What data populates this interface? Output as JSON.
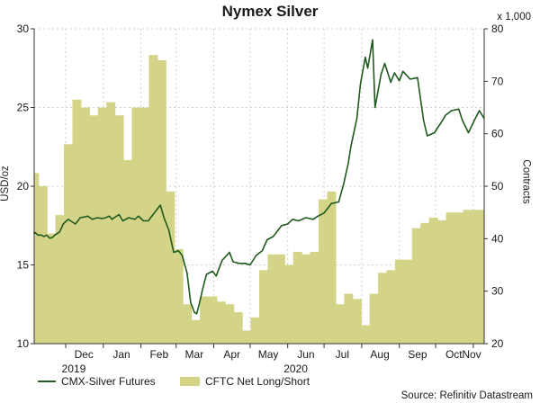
{
  "title": "Nymex Silver",
  "source": "Source: Refinitiv Datastream",
  "colors": {
    "line": "#1f5a1f",
    "bar": "#d4d488",
    "grid": "#cfcfcf",
    "plot_bg": "#ffffff"
  },
  "chart_data": {
    "type": "bar+line",
    "title": "Nymex Silver",
    "x_ticks": [
      "Dec",
      "Jan",
      "Feb",
      "Mar",
      "Apr",
      "May",
      "Jun",
      "Jul",
      "Aug",
      "Sep",
      "Oct",
      "Nov"
    ],
    "year_labels": [
      "2019",
      "2020"
    ],
    "y_left": {
      "label": "USD/oz",
      "range": [
        10,
        30
      ],
      "ticks": [
        "10",
        "15",
        "20",
        "25",
        "30"
      ]
    },
    "y_right": {
      "label": "Contracts",
      "scale_note": "x 1,000",
      "range": [
        20,
        80
      ],
      "ticks": [
        "20",
        "30",
        "40",
        "50",
        "60",
        "70",
        "80"
      ]
    },
    "legend": {
      "position": "bottom-left",
      "line_label": "CMX-Silver Futures",
      "bar_label": "CFTC Net Long/Short"
    },
    "date_range": [
      "2019-11-05",
      "2020-11-10"
    ],
    "series": [
      {
        "name": "CFTC Net Long/Short",
        "axis": "right",
        "kind": "bar",
        "dates": [
          "2019-11-05",
          "2019-11-12",
          "2019-11-19",
          "2019-11-26",
          "2019-12-03",
          "2019-12-10",
          "2019-12-17",
          "2019-12-24",
          "2019-12-31",
          "2020-01-07",
          "2020-01-14",
          "2020-01-21",
          "2020-01-28",
          "2020-02-04",
          "2020-02-11",
          "2020-02-18",
          "2020-02-25",
          "2020-03-03",
          "2020-03-10",
          "2020-03-17",
          "2020-03-24",
          "2020-03-31",
          "2020-04-07",
          "2020-04-14",
          "2020-04-21",
          "2020-04-28",
          "2020-05-05",
          "2020-05-12",
          "2020-05-19",
          "2020-05-26",
          "2020-06-02",
          "2020-06-09",
          "2020-06-16",
          "2020-06-23",
          "2020-06-30",
          "2020-07-07",
          "2020-07-14",
          "2020-07-21",
          "2020-07-28",
          "2020-08-04",
          "2020-08-11",
          "2020-08-18",
          "2020-08-25",
          "2020-09-01",
          "2020-09-08",
          "2020-09-15",
          "2020-09-22",
          "2020-09-29",
          "2020-10-06",
          "2020-10-13",
          "2020-10-20",
          "2020-10-27",
          "2020-11-03",
          "2020-11-10"
        ],
        "values": [
          52.5,
          50.0,
          41.0,
          44.5,
          58.0,
          66.5,
          65.0,
          63.5,
          65.0,
          66.0,
          63.5,
          55.0,
          65.0,
          65.0,
          75.0,
          74.0,
          49.0,
          38.0,
          27.5,
          24.5,
          29.0,
          29.0,
          28.0,
          27.5,
          26.0,
          22.5,
          25.0,
          34.0,
          37.0,
          37.0,
          35.0,
          37.5,
          37.0,
          37.5,
          47.5,
          49.0,
          27.5,
          29.5,
          28.5,
          23.5,
          29.5,
          33.5,
          34.0,
          36.0,
          36.0,
          42.0,
          43.0,
          44.0,
          43.5,
          45.0,
          45.0,
          45.5,
          45.5,
          45.5
        ]
      },
      {
        "name": "CMX-Silver Futures",
        "axis": "left",
        "kind": "line",
        "dates": [
          "2019-11-01",
          "2019-11-04",
          "2019-11-06",
          "2019-11-08",
          "2019-11-11",
          "2019-11-13",
          "2019-11-15",
          "2019-11-18",
          "2019-11-20",
          "2019-11-22",
          "2019-11-26",
          "2019-11-29",
          "2019-12-03",
          "2019-12-05",
          "2019-12-09",
          "2019-12-11",
          "2019-12-13",
          "2019-12-17",
          "2019-12-19",
          "2019-12-23",
          "2019-12-27",
          "2019-12-31",
          "2020-01-03",
          "2020-01-06",
          "2020-01-08",
          "2020-01-10",
          "2020-01-14",
          "2020-01-17",
          "2020-01-22",
          "2020-01-27",
          "2020-01-30",
          "2020-02-03",
          "2020-02-07",
          "2020-02-12",
          "2020-02-17",
          "2020-02-20",
          "2020-02-24",
          "2020-02-26",
          "2020-02-28",
          "2020-03-03",
          "2020-03-06",
          "2020-03-10",
          "2020-03-13",
          "2020-03-16",
          "2020-03-18",
          "2020-03-20",
          "2020-03-23",
          "2020-03-26",
          "2020-03-31",
          "2020-04-03",
          "2020-04-08",
          "2020-04-14",
          "2020-04-17",
          "2020-04-22",
          "2020-04-27",
          "2020-05-01",
          "2020-05-06",
          "2020-05-11",
          "2020-05-15",
          "2020-05-20",
          "2020-05-27",
          "2020-06-01",
          "2020-06-05",
          "2020-06-10",
          "2020-06-16",
          "2020-06-22",
          "2020-06-26",
          "2020-07-01",
          "2020-07-07",
          "2020-07-13",
          "2020-07-17",
          "2020-07-21",
          "2020-07-23",
          "2020-07-28",
          "2020-07-31",
          "2020-08-04",
          "2020-08-06",
          "2020-08-10",
          "2020-08-12",
          "2020-08-17",
          "2020-08-20",
          "2020-08-25",
          "2020-08-28",
          "2020-09-01",
          "2020-09-04",
          "2020-09-10",
          "2020-09-16",
          "2020-09-21",
          "2020-09-24",
          "2020-09-30",
          "2020-10-06",
          "2020-10-09",
          "2020-10-14",
          "2020-10-20",
          "2020-10-23",
          "2020-10-28",
          "2020-11-02",
          "2020-11-06",
          "2020-11-10"
        ],
        "values": [
          17.1,
          17.0,
          17.05,
          16.9,
          16.9,
          16.8,
          16.9,
          16.7,
          16.75,
          16.9,
          17.1,
          17.6,
          17.9,
          17.8,
          17.6,
          17.8,
          18.0,
          18.05,
          18.1,
          17.9,
          18.0,
          17.95,
          18.0,
          18.1,
          17.9,
          18.0,
          18.2,
          17.8,
          18.0,
          17.9,
          18.1,
          17.8,
          17.8,
          18.3,
          18.8,
          18.0,
          17.2,
          16.5,
          15.8,
          15.9,
          15.6,
          14.5,
          12.6,
          12.0,
          11.9,
          12.5,
          13.5,
          14.4,
          14.6,
          14.3,
          15.3,
          15.8,
          15.2,
          15.1,
          15.1,
          15.0,
          15.6,
          15.9,
          16.6,
          16.8,
          17.5,
          17.6,
          17.9,
          17.8,
          18.0,
          17.9,
          18.1,
          18.3,
          18.9,
          19.0,
          20.1,
          21.5,
          22.5,
          24.3,
          26.5,
          28.2,
          27.5,
          29.3,
          25.0,
          27.1,
          27.8,
          26.6,
          27.2,
          26.7,
          27.3,
          26.8,
          26.9,
          24.2,
          23.2,
          23.4,
          24.1,
          24.5,
          24.8,
          24.9,
          24.2,
          23.4,
          24.2,
          24.8,
          24.3
        ]
      }
    ]
  }
}
